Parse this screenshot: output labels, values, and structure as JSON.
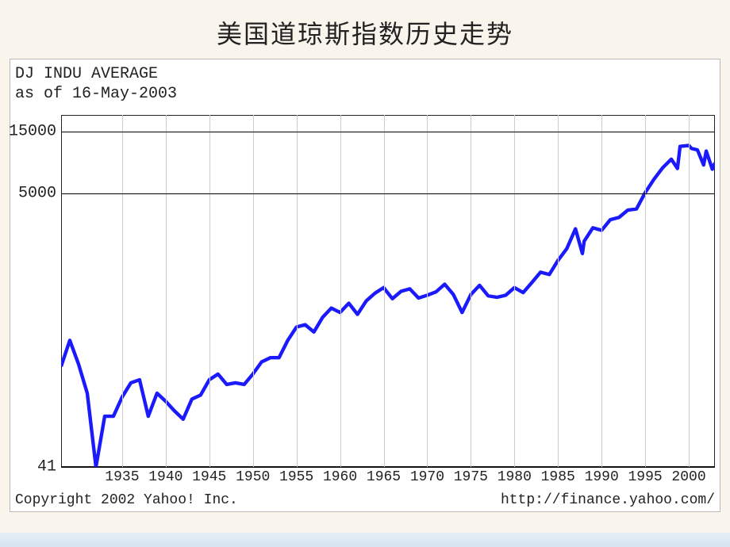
{
  "title": "美国道琼斯指数历史走势",
  "header": {
    "line1": "DJ INDU AVERAGE",
    "line2": "as of 16-May-2003"
  },
  "footer": {
    "copyright": "Copyright 2002 Yahoo! Inc.",
    "url": "http://finance.yahoo.com/"
  },
  "chart": {
    "type": "line",
    "scale": "log",
    "background_color": "#ffffff",
    "grid_color": "#cccccc",
    "axis_color": "#000000",
    "line_color": "#1a1afc",
    "line_width": 2,
    "emphasis_hline_color": "#000000",
    "font_family": "Courier New",
    "label_fontsize": 18,
    "title_fontsize": 32,
    "x_range": [
      1928,
      2003
    ],
    "y_range_log10": [
      1.613,
      4.301
    ],
    "y_ticks": [
      {
        "value": 41,
        "log10": 1.613,
        "label": "41"
      },
      {
        "value": 5000,
        "log10": 3.699,
        "label": "5000"
      },
      {
        "value": 15000,
        "log10": 4.176,
        "label": "15000"
      }
    ],
    "x_ticks": [
      1935,
      1940,
      1945,
      1950,
      1955,
      1960,
      1965,
      1970,
      1975,
      1980,
      1985,
      1990,
      1995,
      2000
    ],
    "series": {
      "name": "DJIA",
      "points_xy": [
        [
          1928,
          240
        ],
        [
          1929,
          380
        ],
        [
          1930,
          250
        ],
        [
          1931,
          150
        ],
        [
          1932,
          41
        ],
        [
          1933,
          100
        ],
        [
          1934,
          100
        ],
        [
          1935,
          140
        ],
        [
          1936,
          180
        ],
        [
          1937,
          190
        ],
        [
          1938,
          100
        ],
        [
          1939,
          150
        ],
        [
          1940,
          130
        ],
        [
          1941,
          110
        ],
        [
          1942,
          95
        ],
        [
          1943,
          135
        ],
        [
          1944,
          145
        ],
        [
          1945,
          190
        ],
        [
          1946,
          210
        ],
        [
          1947,
          175
        ],
        [
          1948,
          180
        ],
        [
          1949,
          175
        ],
        [
          1950,
          210
        ],
        [
          1951,
          260
        ],
        [
          1952,
          280
        ],
        [
          1953,
          280
        ],
        [
          1954,
          380
        ],
        [
          1955,
          480
        ],
        [
          1956,
          500
        ],
        [
          1957,
          440
        ],
        [
          1958,
          570
        ],
        [
          1959,
          670
        ],
        [
          1960,
          620
        ],
        [
          1961,
          730
        ],
        [
          1962,
          600
        ],
        [
          1963,
          760
        ],
        [
          1964,
          870
        ],
        [
          1965,
          960
        ],
        [
          1966,
          790
        ],
        [
          1967,
          900
        ],
        [
          1968,
          940
        ],
        [
          1969,
          800
        ],
        [
          1970,
          840
        ],
        [
          1971,
          890
        ],
        [
          1972,
          1020
        ],
        [
          1973,
          850
        ],
        [
          1974,
          620
        ],
        [
          1975,
          850
        ],
        [
          1976,
          1000
        ],
        [
          1977,
          830
        ],
        [
          1978,
          810
        ],
        [
          1979,
          840
        ],
        [
          1980,
          960
        ],
        [
          1981,
          880
        ],
        [
          1982,
          1050
        ],
        [
          1983,
          1260
        ],
        [
          1984,
          1210
        ],
        [
          1985,
          1550
        ],
        [
          1986,
          1900
        ],
        [
          1987,
          2700
        ],
        [
          1987.8,
          1750
        ],
        [
          1988,
          2170
        ],
        [
          1989,
          2750
        ],
        [
          1990,
          2630
        ],
        [
          1991,
          3170
        ],
        [
          1992,
          3300
        ],
        [
          1993,
          3750
        ],
        [
          1994,
          3830
        ],
        [
          1995,
          5100
        ],
        [
          1996,
          6450
        ],
        [
          1997,
          7900
        ],
        [
          1998,
          9180
        ],
        [
          1998.7,
          7800
        ],
        [
          1999,
          11500
        ],
        [
          2000,
          11700
        ],
        [
          2000.3,
          11100
        ],
        [
          2001,
          10800
        ],
        [
          2001.7,
          8300
        ],
        [
          2002,
          10600
        ],
        [
          2002.7,
          7700
        ],
        [
          2003,
          8600
        ]
      ]
    }
  }
}
